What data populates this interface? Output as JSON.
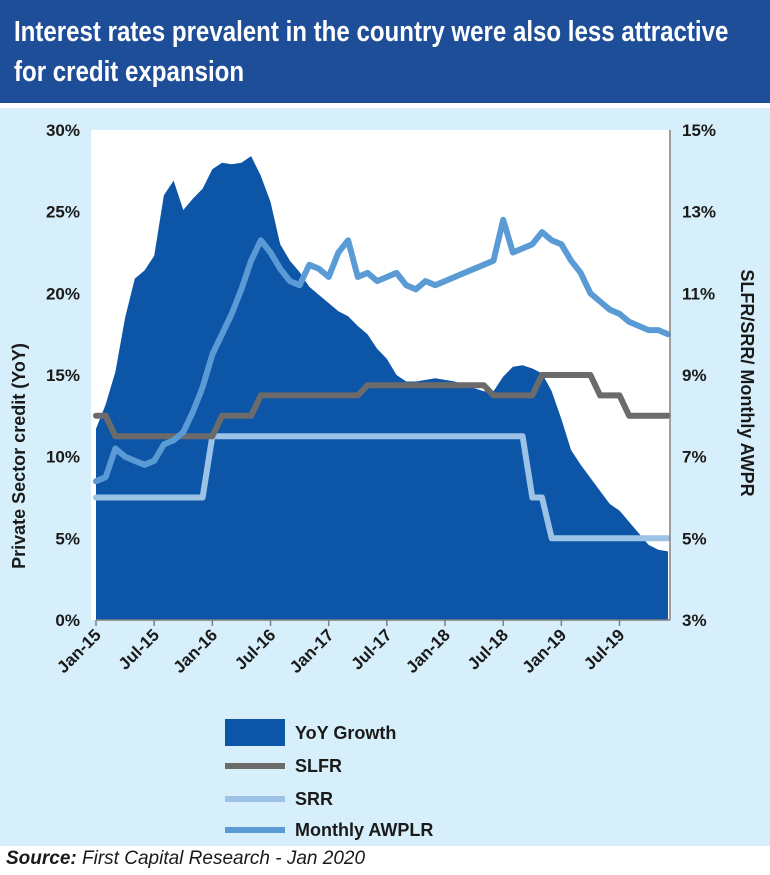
{
  "header": {
    "title": "Interest rates prevalent in the country were also less attractive for credit expansion"
  },
  "source": {
    "prefix": "Source:",
    "text": " First Capital Research - Jan 2020"
  },
  "colors": {
    "title_bg": "#1f4e99",
    "panel_bg": "#d7effa",
    "plot_bg": "#ffffff",
    "yoy_growth": "#0d55a7",
    "slfr": "#6b6b6b",
    "srr": "#9cc3e6",
    "awplr": "#5b9bd5"
  },
  "chart_data": {
    "type": "area",
    "x": [
      "Jan-15",
      "Feb-15",
      "Mar-15",
      "Apr-15",
      "May-15",
      "Jun-15",
      "Jul-15",
      "Aug-15",
      "Sep-15",
      "Oct-15",
      "Nov-15",
      "Dec-15",
      "Jan-16",
      "Feb-16",
      "Mar-16",
      "Apr-16",
      "May-16",
      "Jun-16",
      "Jul-16",
      "Aug-16",
      "Sep-16",
      "Oct-16",
      "Nov-16",
      "Dec-16",
      "Jan-17",
      "Feb-17",
      "Mar-17",
      "Apr-17",
      "May-17",
      "Jun-17",
      "Jul-17",
      "Aug-17",
      "Sep-17",
      "Oct-17",
      "Nov-17",
      "Dec-17",
      "Jan-18",
      "Feb-18",
      "Mar-18",
      "Apr-18",
      "May-18",
      "Jun-18",
      "Jul-18",
      "Aug-18",
      "Sep-18",
      "Oct-18",
      "Nov-18",
      "Dec-18",
      "Jan-19",
      "Feb-19",
      "Mar-19",
      "Apr-19",
      "May-19",
      "Jun-19",
      "Jul-19",
      "Aug-19",
      "Sep-19",
      "Oct-19",
      "Nov-19",
      "Dec-19"
    ],
    "x_tick_labels": [
      "Jan-15",
      "Jul-15",
      "Jan-16",
      "Jul-16",
      "Jan-17",
      "Jul-17",
      "Jan-18",
      "Jul-18",
      "Jan-19",
      "Jul-19"
    ],
    "x_tick_indices": [
      0,
      6,
      12,
      18,
      24,
      30,
      36,
      42,
      48,
      54
    ],
    "ylabel": "Private Sector credit (YoY)",
    "y_right_label": "SLFR/SRR/ Monthly AWPR",
    "ylim": [
      0,
      30
    ],
    "y_ticks": [
      "0%",
      "5%",
      "10%",
      "15%",
      "20%",
      "25%",
      "30%"
    ],
    "y_right_lim": [
      3,
      15
    ],
    "y_right_ticks": [
      "3%",
      "5%",
      "7%",
      "9%",
      "11%",
      "13%",
      "15%"
    ],
    "grid": false,
    "legend_position": "bottom",
    "series": [
      {
        "name": "YoY Growth",
        "type": "area",
        "axis": "left",
        "values": [
          11.7,
          13.2,
          15.2,
          18.5,
          20.9,
          21.4,
          22.3,
          26.0,
          26.9,
          25.1,
          25.8,
          26.4,
          27.6,
          28.0,
          27.9,
          28.0,
          28.4,
          27.2,
          25.6,
          23.0,
          22.0,
          21.3,
          20.4,
          19.9,
          19.4,
          18.9,
          18.6,
          18.0,
          17.5,
          16.6,
          16.0,
          15.0,
          14.6,
          14.6,
          14.7,
          14.8,
          14.7,
          14.6,
          14.4,
          14.2,
          14.0,
          14.0,
          14.9,
          15.5,
          15.6,
          15.4,
          15.1,
          14.0,
          12.3,
          10.4,
          9.5,
          8.7,
          7.9,
          7.1,
          6.7,
          6.0,
          5.3,
          4.6,
          4.3,
          4.2
        ]
      },
      {
        "name": "SLFR",
        "type": "line",
        "axis": "right",
        "values": [
          8.0,
          8.0,
          7.5,
          7.5,
          7.5,
          7.5,
          7.5,
          7.5,
          7.5,
          7.5,
          7.5,
          7.5,
          7.5,
          8.0,
          8.0,
          8.0,
          8.0,
          8.5,
          8.5,
          8.5,
          8.5,
          8.5,
          8.5,
          8.5,
          8.5,
          8.5,
          8.5,
          8.5,
          8.75,
          8.75,
          8.75,
          8.75,
          8.75,
          8.75,
          8.75,
          8.75,
          8.75,
          8.75,
          8.75,
          8.75,
          8.75,
          8.5,
          8.5,
          8.5,
          8.5,
          8.5,
          9.0,
          9.0,
          9.0,
          9.0,
          9.0,
          9.0,
          8.5,
          8.5,
          8.5,
          8.0,
          8.0,
          8.0,
          8.0,
          8.0
        ]
      },
      {
        "name": "SRR",
        "type": "line",
        "axis": "right",
        "values": [
          6.0,
          6.0,
          6.0,
          6.0,
          6.0,
          6.0,
          6.0,
          6.0,
          6.0,
          6.0,
          6.0,
          6.0,
          7.5,
          7.5,
          7.5,
          7.5,
          7.5,
          7.5,
          7.5,
          7.5,
          7.5,
          7.5,
          7.5,
          7.5,
          7.5,
          7.5,
          7.5,
          7.5,
          7.5,
          7.5,
          7.5,
          7.5,
          7.5,
          7.5,
          7.5,
          7.5,
          7.5,
          7.5,
          7.5,
          7.5,
          7.5,
          7.5,
          7.5,
          7.5,
          7.5,
          6.0,
          6.0,
          5.0,
          5.0,
          5.0,
          5.0,
          5.0,
          5.0,
          5.0,
          5.0,
          5.0,
          5.0,
          5.0,
          5.0,
          5.0
        ]
      },
      {
        "name": "Monthly AWPLR",
        "type": "line",
        "axis": "right",
        "values": [
          6.4,
          6.5,
          7.2,
          7.0,
          6.9,
          6.8,
          6.9,
          7.3,
          7.4,
          7.6,
          8.1,
          8.7,
          9.5,
          10.0,
          10.5,
          11.1,
          11.8,
          12.3,
          12.0,
          11.6,
          11.3,
          11.2,
          11.7,
          11.6,
          11.4,
          12.0,
          12.3,
          11.4,
          11.5,
          11.3,
          11.4,
          11.5,
          11.2,
          11.1,
          11.3,
          11.2,
          11.3,
          11.4,
          11.5,
          11.6,
          11.7,
          11.8,
          12.8,
          12.0,
          12.1,
          12.2,
          12.5,
          12.3,
          12.2,
          11.8,
          11.5,
          11.0,
          10.8,
          10.6,
          10.5,
          10.3,
          10.2,
          10.1,
          10.1,
          10.0
        ]
      }
    ]
  }
}
